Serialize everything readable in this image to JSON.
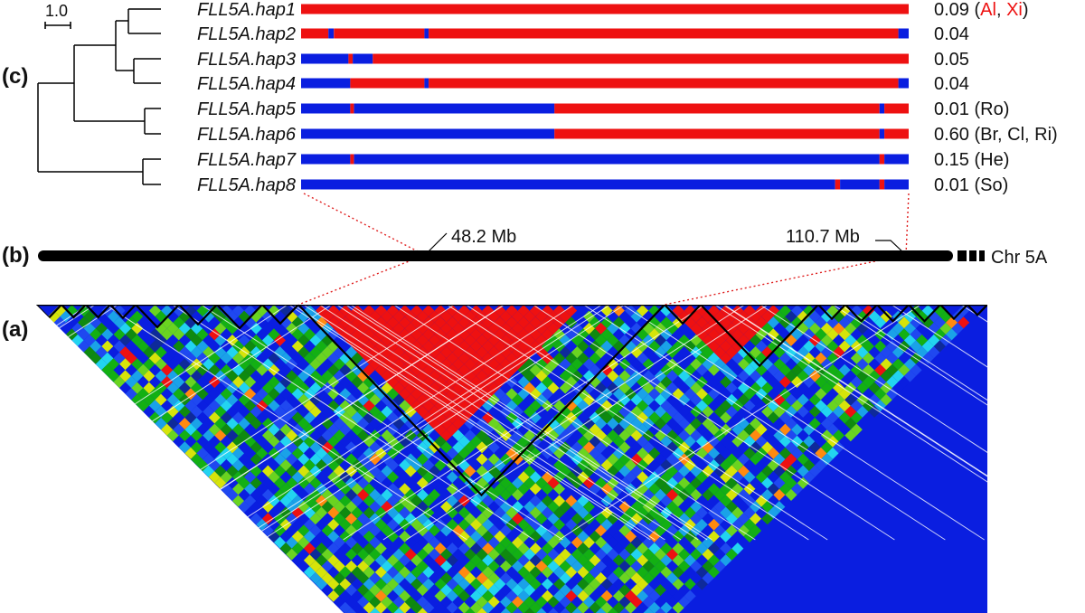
{
  "panels": {
    "a": "(a)",
    "b": "(b)",
    "c": "(c)"
  },
  "scale_bar": "1.0",
  "colors": {
    "red": "#ee1111",
    "blue": "#0a1ee0",
    "black": "#000000"
  },
  "haplotypes": [
    {
      "name": "FLL5A.hap1",
      "freq": "0.09",
      "pop_parts": [
        {
          "text": " (",
          "red": false
        },
        {
          "text": "Al",
          "red": true
        },
        {
          "text": ", ",
          "red": false
        },
        {
          "text": "Xi",
          "red": true
        },
        {
          "text": ")",
          "red": false
        }
      ],
      "segments": [
        [
          0,
          1,
          "red"
        ]
      ]
    },
    {
      "name": "FLL5A.hap2",
      "freq": "0.04",
      "pop_parts": [],
      "segments": [
        [
          0,
          0.045,
          "red"
        ],
        [
          0.045,
          0.054,
          "blue"
        ],
        [
          0.054,
          0.203,
          "red"
        ],
        [
          0.203,
          0.21,
          "blue"
        ],
        [
          0.21,
          0.983,
          "red"
        ],
        [
          0.983,
          1,
          "blue"
        ]
      ]
    },
    {
      "name": "FLL5A.hap3",
      "freq": "0.05",
      "pop_parts": [],
      "segments": [
        [
          0,
          0.078,
          "blue"
        ],
        [
          0.078,
          0.085,
          "red"
        ],
        [
          0.085,
          0.118,
          "blue"
        ],
        [
          0.118,
          1,
          "red"
        ]
      ]
    },
    {
      "name": "FLL5A.hap4",
      "freq": "0.04",
      "pop_parts": [],
      "segments": [
        [
          0,
          0.081,
          "blue"
        ],
        [
          0.081,
          0.203,
          "red"
        ],
        [
          0.203,
          0.21,
          "blue"
        ],
        [
          0.21,
          0.983,
          "red"
        ],
        [
          0.983,
          1,
          "blue"
        ]
      ]
    },
    {
      "name": "FLL5A.hap5",
      "freq": "0.01",
      "pop_parts": [
        {
          "text": " (Ro)",
          "red": false
        }
      ],
      "segments": [
        [
          0,
          0.081,
          "blue"
        ],
        [
          0.081,
          0.087,
          "red"
        ],
        [
          0.087,
          0.417,
          "blue"
        ],
        [
          0.417,
          0.952,
          "red"
        ],
        [
          0.952,
          0.96,
          "blue"
        ],
        [
          0.96,
          1,
          "red"
        ]
      ]
    },
    {
      "name": "FLL5A.hap6",
      "freq": "0.60",
      "pop_parts": [
        {
          "text": " (Br, Cl, Ri)",
          "red": false
        }
      ],
      "segments": [
        [
          0,
          0.417,
          "blue"
        ],
        [
          0.417,
          0.952,
          "red"
        ],
        [
          0.952,
          0.96,
          "blue"
        ],
        [
          0.96,
          1,
          "red"
        ]
      ]
    },
    {
      "name": "FLL5A.hap7",
      "freq": "0.15",
      "pop_parts": [
        {
          "text": " (He)",
          "red": false
        }
      ],
      "segments": [
        [
          0,
          0.081,
          "blue"
        ],
        [
          0.081,
          0.087,
          "red"
        ],
        [
          0.087,
          0.952,
          "blue"
        ],
        [
          0.952,
          0.96,
          "red"
        ],
        [
          0.96,
          1,
          "blue"
        ]
      ]
    },
    {
      "name": "FLL5A.hap8",
      "freq": "0.01",
      "pop_parts": [
        {
          "text": " (So)",
          "red": false
        }
      ],
      "segments": [
        [
          0,
          0.879,
          "blue"
        ],
        [
          0.879,
          0.887,
          "red"
        ],
        [
          0.887,
          0.952,
          "blue"
        ],
        [
          0.952,
          0.96,
          "red"
        ],
        [
          0.96,
          1,
          "blue"
        ]
      ]
    }
  ],
  "chromosome": {
    "label": "Chr 5A",
    "pos_left": "48.2 Mb",
    "pos_right": "110.7 Mb"
  },
  "ld_blocks_colors": [
    "#ee1111",
    "#0a1ee0",
    "#1f48f0",
    "#1aa2e8",
    "#22d4f0",
    "#13b013",
    "#0f8a0f",
    "#6ad420",
    "#d6e40a",
    "#ff8a10",
    "#f5d10a",
    "#0e2a9a"
  ]
}
